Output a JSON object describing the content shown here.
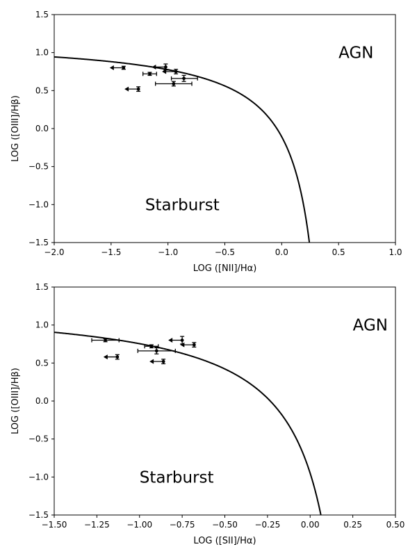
{
  "chart_data": [
    {
      "type": "scatter",
      "title": "",
      "xlabel": "LOG ([NII]/Hα)",
      "ylabel": "LOG ([OIII]/Hβ)",
      "xlim": [
        -2.0,
        1.0
      ],
      "ylim": [
        -1.5,
        1.5
      ],
      "xticks": [
        -2.0,
        -1.5,
        -1.0,
        -0.5,
        0.0,
        0.5,
        1.0
      ],
      "xtick_labels": [
        "−2.0",
        "−1.5",
        "−1.0",
        "−0.5",
        "0.0",
        "0.5",
        "1.0"
      ],
      "yticks": [
        -1.5,
        -1.0,
        -0.5,
        0.0,
        0.5,
        1.0,
        1.5
      ],
      "ytick_labels": [
        "−1.5",
        "−1.0",
        "−0.5",
        "0.0",
        "0.5",
        "1.0",
        "1.5"
      ],
      "grid": false,
      "curve": {
        "a": 0.61,
        "b": 0.47,
        "c": 1.19,
        "x_range": [
          -2.0,
          0.245
        ]
      },
      "annotations": [
        {
          "text": "AGN",
          "x": 0.5,
          "y": 1.0,
          "anchor": "start"
        },
        {
          "text": "Starburst",
          "x": -1.2,
          "y": -1.0,
          "anchor": "start"
        }
      ],
      "points": [
        {
          "x": -1.39,
          "y": 0.8,
          "xerr": [
            0,
            0
          ],
          "yerr": 0.02,
          "upper_limit": true
        },
        {
          "x": -1.02,
          "y": 0.81,
          "xerr": [
            0,
            0
          ],
          "yerr": 0.04,
          "upper_limit": true
        },
        {
          "x": -1.16,
          "y": 0.72,
          "xerr": [
            0.06,
            0.06
          ],
          "yerr": 0.02,
          "upper_limit": false
        },
        {
          "x": -0.93,
          "y": 0.75,
          "xerr": [
            0,
            0
          ],
          "yerr": 0.03,
          "upper_limit": true
        },
        {
          "x": -0.86,
          "y": 0.66,
          "xerr": [
            0.11,
            0.12
          ],
          "yerr": 0.04,
          "upper_limit": false
        },
        {
          "x": -1.26,
          "y": 0.52,
          "xerr": [
            0,
            0
          ],
          "yerr": 0.03,
          "upper_limit": true
        },
        {
          "x": -0.95,
          "y": 0.59,
          "xerr": [
            0.16,
            0.16
          ],
          "yerr": 0.03,
          "upper_limit": false
        }
      ]
    },
    {
      "type": "scatter",
      "title": "",
      "xlabel": "LOG ([SII]/Hα)",
      "ylabel": "LOG ([OIII]/Hβ)",
      "xlim": [
        -1.5,
        0.5
      ],
      "ylim": [
        -1.5,
        1.5
      ],
      "xticks": [
        -1.5,
        -1.25,
        -1.0,
        -0.75,
        -0.5,
        -0.25,
        0.0,
        0.25,
        0.5
      ],
      "xtick_labels": [
        "−1.50",
        "−1.25",
        "−1.00",
        "−0.75",
        "−0.50",
        "−0.25",
        "0.00",
        "0.25",
        "0.50"
      ],
      "yticks": [
        -1.5,
        -1.0,
        -0.5,
        0.0,
        0.5,
        1.0,
        1.5
      ],
      "ytick_labels": [
        "−1.5",
        "−1.0",
        "−0.5",
        "0.0",
        "0.5",
        "1.0",
        "1.5"
      ],
      "grid": false,
      "curve": {
        "a": 0.72,
        "b": 0.32,
        "c": 1.3,
        "x_range": [
          -1.5,
          0.065
        ]
      },
      "annotations": [
        {
          "text": "AGN",
          "x": 0.25,
          "y": 1.0,
          "anchor": "start"
        },
        {
          "text": "Starburst",
          "x": -1.0,
          "y": -1.0,
          "anchor": "start"
        }
      ],
      "points": [
        {
          "x": -1.2,
          "y": 0.8,
          "xerr": [
            0.08,
            0.08
          ],
          "yerr": 0.02,
          "upper_limit": false
        },
        {
          "x": -0.93,
          "y": 0.72,
          "xerr": [
            0.04,
            0.04
          ],
          "yerr": 0.02,
          "upper_limit": false
        },
        {
          "x": -0.9,
          "y": 0.66,
          "xerr": [
            0.11,
            0.11
          ],
          "yerr": 0.04,
          "upper_limit": false
        },
        {
          "x": -0.75,
          "y": 0.8,
          "xerr": [
            0,
            0
          ],
          "yerr": 0.05,
          "upper_limit": true
        },
        {
          "x": -0.68,
          "y": 0.74,
          "xerr": [
            0,
            0
          ],
          "yerr": 0.03,
          "upper_limit": true
        },
        {
          "x": -1.13,
          "y": 0.58,
          "xerr": [
            0,
            0
          ],
          "yerr": 0.03,
          "upper_limit": true
        },
        {
          "x": -0.86,
          "y": 0.52,
          "xerr": [
            0,
            0
          ],
          "yerr": 0.03,
          "upper_limit": true
        }
      ]
    }
  ]
}
